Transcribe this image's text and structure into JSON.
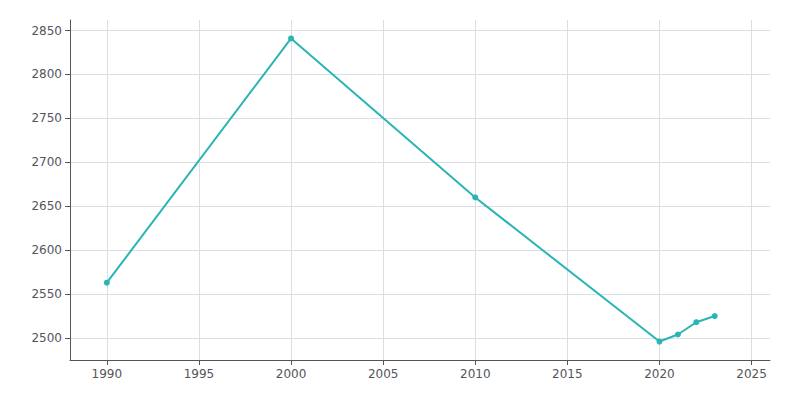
{
  "chart_data": {
    "type": "line",
    "x": [
      1990,
      2000,
      2010,
      2020,
      2021,
      2022,
      2023
    ],
    "values": [
      2563,
      2841,
      2660,
      2496,
      2504,
      2518,
      2525
    ],
    "color": "#2ab5b5",
    "marker": "circle",
    "xlim": [
      1988,
      2026
    ],
    "xticks": [
      1990,
      1995,
      2000,
      2005,
      2010,
      2015,
      2020,
      2025
    ],
    "ylim": [
      2475,
      2862
    ],
    "yticks": [
      2500,
      2550,
      2600,
      2650,
      2700,
      2750,
      2800,
      2850
    ],
    "grid": true
  }
}
